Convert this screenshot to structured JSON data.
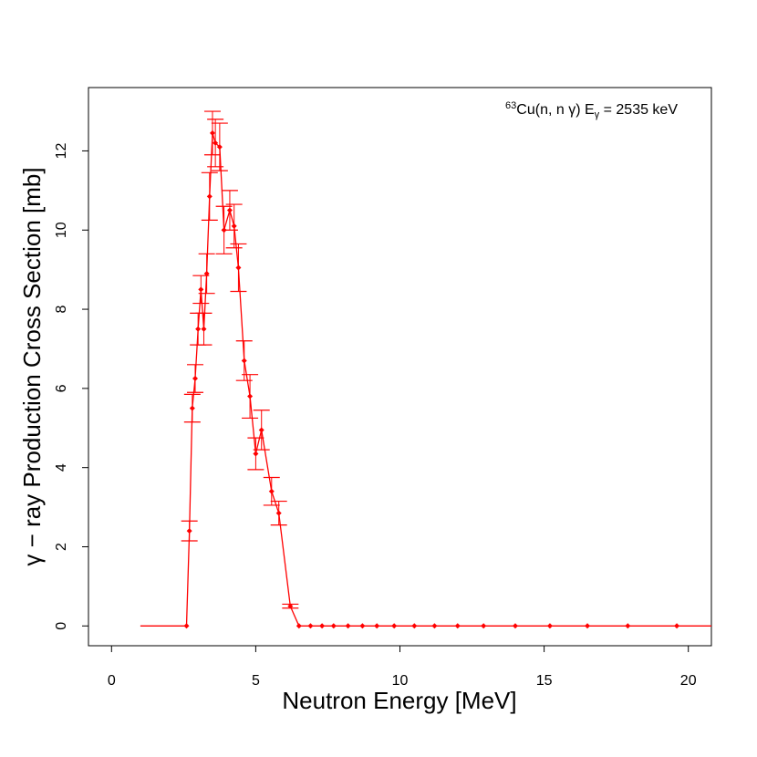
{
  "chart_data": {
    "type": "line",
    "xlabel": "Neutron Energy [MeV]",
    "ylabel": "γ − ray  Production  Cross  Section  [mb]",
    "xlim": [
      -0.8,
      20.8
    ],
    "ylim": [
      -0.5,
      13.6
    ],
    "xticks": [
      0,
      5,
      10,
      15,
      20
    ],
    "yticks": [
      0,
      2,
      4,
      6,
      8,
      10,
      12
    ],
    "grid": false,
    "annotation": {
      "sup": "63",
      "reaction": "Cu(n, n γ) E",
      "sub": "γ",
      "value": " = 2535 keV"
    },
    "color": "#ff0000",
    "line_only": [
      {
        "x": 1.0,
        "y": 0
      },
      {
        "x": 2.3,
        "y": 0
      },
      {
        "x": 2.6,
        "y": 0
      }
    ],
    "points": [
      {
        "x": 2.6,
        "y": 0.0,
        "err": 0.0
      },
      {
        "x": 2.7,
        "y": 2.4,
        "err": 0.25
      },
      {
        "x": 2.8,
        "y": 5.5,
        "err": 0.35
      },
      {
        "x": 2.9,
        "y": 6.25,
        "err": 0.35
      },
      {
        "x": 3.0,
        "y": 7.5,
        "err": 0.4
      },
      {
        "x": 3.1,
        "y": 8.5,
        "err": 0.35
      },
      {
        "x": 3.2,
        "y": 7.5,
        "err": 0.4
      },
      {
        "x": 3.3,
        "y": 8.9,
        "err": 0.5
      },
      {
        "x": 3.4,
        "y": 10.85,
        "err": 0.6
      },
      {
        "x": 3.5,
        "y": 12.45,
        "err": 0.55
      },
      {
        "x": 3.6,
        "y": 12.2,
        "err": 0.6
      },
      {
        "x": 3.75,
        "y": 12.1,
        "err": 0.6
      },
      {
        "x": 3.9,
        "y": 10.0,
        "err": 0.6
      },
      {
        "x": 4.1,
        "y": 10.5,
        "err": 0.5
      },
      {
        "x": 4.25,
        "y": 10.1,
        "err": 0.55
      },
      {
        "x": 4.4,
        "y": 9.05,
        "err": 0.6
      },
      {
        "x": 4.6,
        "y": 6.7,
        "err": 0.5
      },
      {
        "x": 4.8,
        "y": 5.8,
        "err": 0.55
      },
      {
        "x": 5.0,
        "y": 4.35,
        "err": 0.4
      },
      {
        "x": 5.2,
        "y": 4.95,
        "err": 0.5
      },
      {
        "x": 5.55,
        "y": 3.4,
        "err": 0.35
      },
      {
        "x": 5.8,
        "y": 2.85,
        "err": 0.3
      },
      {
        "x": 6.2,
        "y": 0.5,
        "err": 0.05
      },
      {
        "x": 6.5,
        "y": 0.0,
        "err": 0.0
      },
      {
        "x": 6.9,
        "y": 0.0,
        "err": 0.0
      },
      {
        "x": 7.3,
        "y": 0.0,
        "err": 0.0
      },
      {
        "x": 7.7,
        "y": 0.0,
        "err": 0.0
      },
      {
        "x": 8.2,
        "y": 0.0,
        "err": 0.0
      },
      {
        "x": 8.7,
        "y": 0.0,
        "err": 0.0
      },
      {
        "x": 9.2,
        "y": 0.0,
        "err": 0.0
      },
      {
        "x": 9.8,
        "y": 0.0,
        "err": 0.0
      },
      {
        "x": 10.5,
        "y": 0.0,
        "err": 0.0
      },
      {
        "x": 11.2,
        "y": 0.0,
        "err": 0.0
      },
      {
        "x": 12.0,
        "y": 0.0,
        "err": 0.0
      },
      {
        "x": 12.9,
        "y": 0.0,
        "err": 0.0
      },
      {
        "x": 14.0,
        "y": 0.0,
        "err": 0.0
      },
      {
        "x": 15.2,
        "y": 0.0,
        "err": 0.0
      },
      {
        "x": 16.5,
        "y": 0.0,
        "err": 0.0
      },
      {
        "x": 17.9,
        "y": 0.0,
        "err": 0.0
      },
      {
        "x": 19.6,
        "y": 0.0,
        "err": 0.0
      }
    ],
    "line_end": {
      "x": 20.8,
      "y": 0
    }
  }
}
